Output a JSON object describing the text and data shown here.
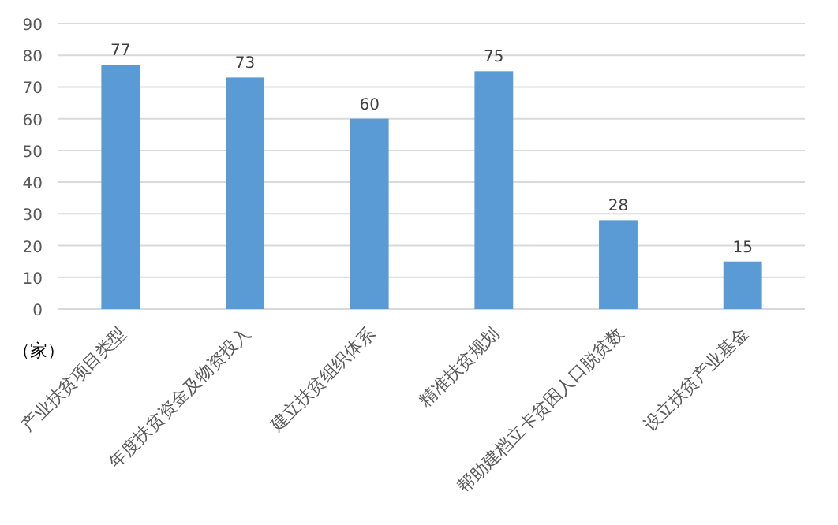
{
  "chart_data": {
    "type": "bar",
    "ylabel": "（家）",
    "categories": [
      "产业扶贫项目类型",
      "年度扶贫资金及物资投入",
      "建立扶贫组织体系",
      "精准扶贫规划",
      "帮助建档立卡贫困人口脱贫数",
      "设立扶贫产业基金"
    ],
    "values": [
      77,
      73,
      60,
      75,
      28,
      15
    ],
    "color": "#5b9bd5",
    "ylim": [
      0,
      90
    ],
    "yticks": [
      0,
      10,
      20,
      30,
      40,
      50,
      60,
      70,
      80,
      90
    ],
    "grid": "y",
    "data_labels": true
  }
}
